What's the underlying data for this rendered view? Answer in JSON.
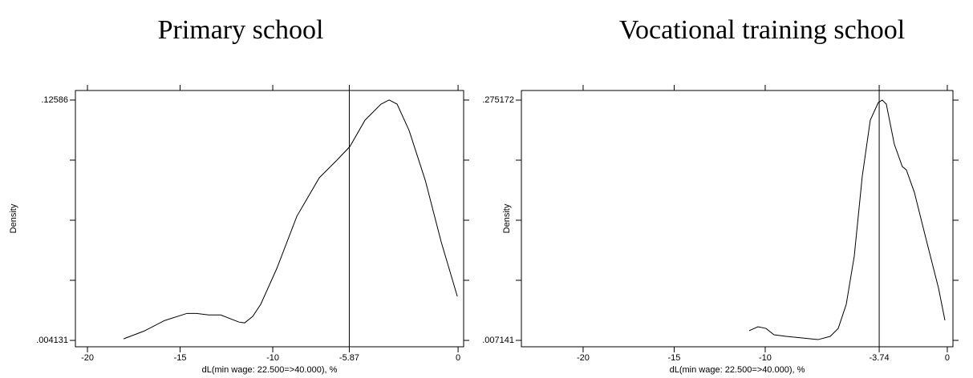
{
  "chart_data": [
    {
      "type": "line",
      "title": "Primary school",
      "xlabel": "dL(min wage: 22.500=>40.000), %",
      "ylabel": "Density",
      "x": [
        -18.05,
        -16.93,
        -15.84,
        -14.63,
        -14.11,
        -13.46,
        -12.81,
        -11.82,
        -11.52,
        -11.08,
        -10.65,
        -9.78,
        -8.7,
        -7.49,
        -6.54,
        -5.84,
        -5.02,
        -4.16,
        -3.72,
        -3.29,
        -2.64,
        -1.77,
        -0.91,
        -0.04
      ],
      "series": [
        {
          "color": "#000000",
          "values": [
            0.0049,
            0.0089,
            0.0142,
            0.0178,
            0.0178,
            0.017,
            0.017,
            0.0134,
            0.013,
            0.0163,
            0.0224,
            0.0406,
            0.067,
            0.0865,
            0.0954,
            0.1023,
            0.1157,
            0.1238,
            0.1259,
            0.1238,
            0.1104,
            0.0852,
            0.054,
            0.0264
          ]
        }
      ],
      "xline": -5.87,
      "xlim": [
        -20.65,
        0.3
      ],
      "xticks": [
        -20,
        -15,
        -10,
        -5.87,
        0
      ],
      "ylim": [
        0.0009,
        0.1307
      ],
      "yticks": [
        {
          "value": 0.004131,
          "label": ".004131"
        },
        {
          "value": 0.12586,
          "label": ".12586"
        }
      ],
      "yticks_unlabeled": [
        0.034563,
        0.064995,
        0.095428
      ]
    },
    {
      "type": "line",
      "title": "Vocational training school",
      "xlabel": "dL(min wage: 22.500=>40.000), %",
      "ylabel": "Density",
      "x": [
        -10.88,
        -10.4,
        -9.96,
        -9.52,
        -8.85,
        -7.97,
        -7.09,
        -6.43,
        -5.99,
        -5.55,
        -5.11,
        -4.67,
        -4.23,
        -3.79,
        -3.57,
        -3.35,
        -2.91,
        -2.47,
        -2.25,
        -1.81,
        -1.15,
        -0.48,
        -0.13
      ],
      "series": [
        {
          "color": "#000000",
          "values": [
            0.0179,
            0.0223,
            0.0205,
            0.0134,
            0.0116,
            0.0098,
            0.008,
            0.0116,
            0.0205,
            0.0473,
            0.101,
            0.1903,
            0.2528,
            0.2725,
            0.2752,
            0.2707,
            0.226,
            0.201,
            0.1974,
            0.1724,
            0.1188,
            0.0652,
            0.0295
          ]
        }
      ],
      "xline": -3.74,
      "xlim": [
        -23.39,
        0.31
      ],
      "xticks": [
        -20,
        -15,
        -10,
        -3.74,
        0
      ],
      "ylim": [
        0.0,
        0.2859
      ],
      "yticks": [
        {
          "value": 0.007141,
          "label": ".007141"
        },
        {
          "value": 0.275172,
          "label": ".275172"
        }
      ],
      "yticks_unlabeled": [
        0.074149,
        0.141157,
        0.208164
      ]
    }
  ]
}
